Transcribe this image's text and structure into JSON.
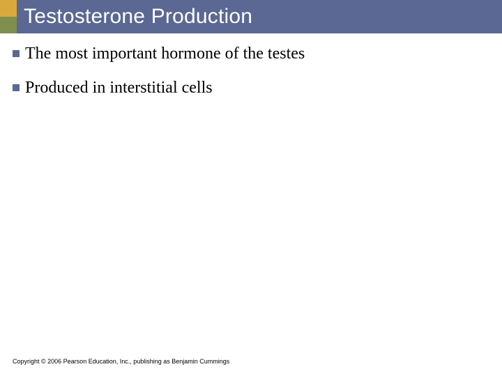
{
  "colors": {
    "header_bg": "#5b6893",
    "accent_top": "#d9a93e",
    "accent_bottom": "#7f8f4e",
    "bullet": "#5b6893",
    "text": "#000000",
    "title_text": "#ffffff",
    "page_bg": "#ffffff"
  },
  "typography": {
    "title_fontsize": 30,
    "bullet_fontsize": 24,
    "footer_fontsize": 9,
    "title_family": "Arial",
    "bullet_family": "Georgia"
  },
  "header": {
    "title": "Testosterone Production"
  },
  "bullets": [
    {
      "text": "The most important hormone of the testes"
    },
    {
      "text": "Produced in interstitial cells"
    }
  ],
  "footer": {
    "text": "Copyright © 2006 Pearson Education, Inc., publishing as Benjamin Cummings"
  }
}
